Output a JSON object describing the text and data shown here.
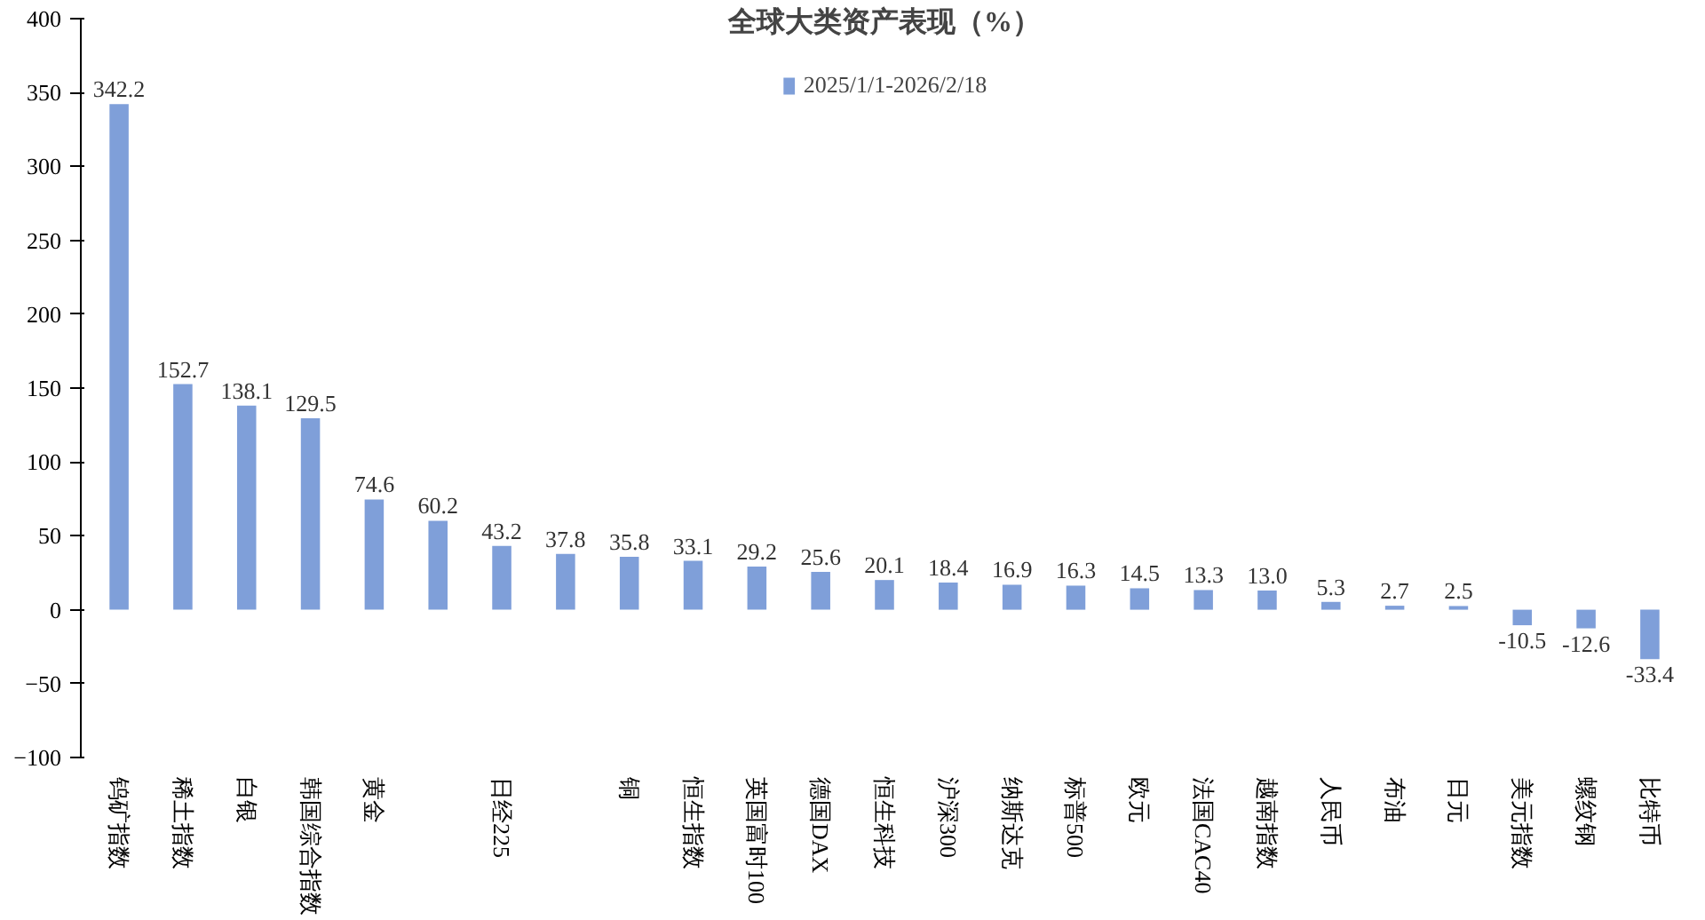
{
  "chart_data": {
    "type": "bar",
    "title": "全球大类资产表现（%）",
    "categories": [
      "钨矿指数",
      "稀土指数",
      "白银",
      "韩国综合指数",
      "黄金",
      null,
      "日经225",
      null,
      "铜",
      "恒生指数",
      "英国富时100",
      "德国DAX",
      "恒生科技",
      "沪深300",
      "纳斯达克",
      "标普500",
      "欧元",
      "法国CAC40",
      "越南指数",
      "人民币",
      "布油",
      "日元",
      "美元指数",
      "螺纹钢",
      "比特币"
    ],
    "series": [
      {
        "name": "2025/1/1-2026/2/18",
        "color": "#7f9fd9",
        "values": [
          342.2,
          152.7,
          138.1,
          129.5,
          74.6,
          60.2,
          43.2,
          37.8,
          35.8,
          33.1,
          29.2,
          25.6,
          20.1,
          18.4,
          16.9,
          16.3,
          14.5,
          13.3,
          13.0,
          5.3,
          2.7,
          2.5,
          -10.5,
          -12.6,
          -33.4
        ]
      }
    ],
    "ylim": [
      -100,
      400
    ],
    "yticks": [
      -100,
      -50,
      0,
      50,
      100,
      150,
      200,
      250,
      300,
      350,
      400
    ],
    "value_labels": [
      "342.2",
      "152.7",
      "138.1",
      "129.5",
      "74.6",
      "60.2",
      "43.2",
      "37.8",
      "35.8",
      "33.1",
      "29.2",
      "25.6",
      "20.1",
      "18.4",
      "16.9",
      "16.3",
      "14.5",
      "13.3",
      "13.0",
      "5.3",
      "2.7",
      "2.5",
      "-10.5",
      "-12.6",
      "-33.4"
    ],
    "legend": "top",
    "grid": false
  }
}
